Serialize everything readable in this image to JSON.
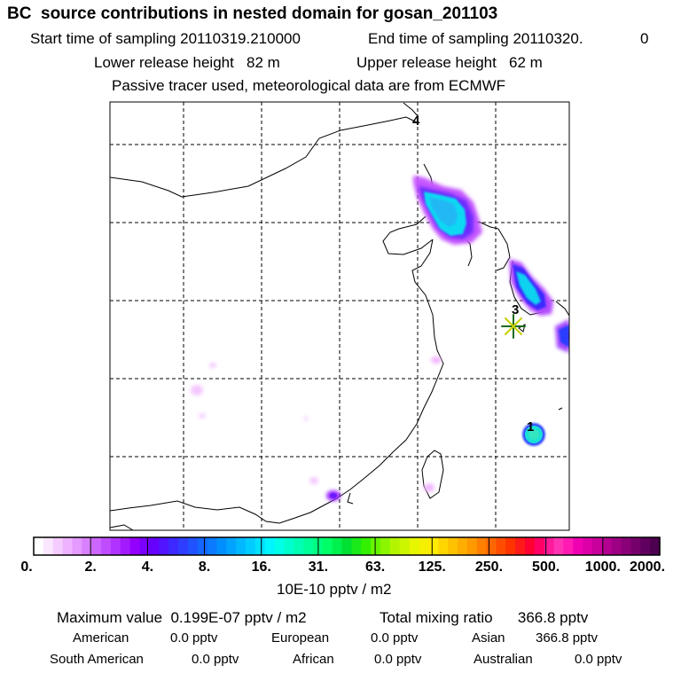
{
  "header": {
    "title": "BC  source contributions in nested domain for gosan_201103",
    "start_label": "Start time of sampling 20110319.210000",
    "end_label": "End time of sampling 20110320.",
    "end_suffix": "0",
    "lower_release": "Lower release height   82 m",
    "upper_release": "Upper release height   62 m",
    "tracer_note": "Passive tracer used, meteorological data are from ECMWF"
  },
  "map": {
    "markers": [
      {
        "label": "4"
      },
      {
        "label": "3"
      },
      {
        "label": "1"
      }
    ],
    "receptor_icon": "asterisk-star-icon"
  },
  "colorbar": {
    "ticks": [
      "0.",
      "2.",
      "4.",
      "8.",
      "16.",
      "31.",
      "63.",
      "125.",
      "250.",
      "500.",
      "1000.",
      "2000."
    ],
    "colors": [
      "#ffffff",
      "#fbe6ff",
      "#f5ccff",
      "#eeb3ff",
      "#e49aff",
      "#d980ff",
      "#cc66ff",
      "#bf4dff",
      "#b033ff",
      "#a31aff",
      "#9400ff",
      "#7a00ff",
      "#6600ff",
      "#5214ff",
      "#3d29ff",
      "#2e3dff",
      "#2052ff",
      "#1466ff",
      "#0a7aff",
      "#008fff",
      "#00a3ff",
      "#00b8ff",
      "#00ccff",
      "#00e0ff",
      "#00f5ff",
      "#00ffe6",
      "#00ffcc",
      "#00ffb3",
      "#00ff99",
      "#00ff80",
      "#00ff66",
      "#00f04d",
      "#00e033",
      "#1aea1a",
      "#33f000",
      "#66f500",
      "#8cf500",
      "#b3f500",
      "#ccf500",
      "#e6f500",
      "#f5f000",
      "#ffeb00",
      "#ffd600",
      "#ffc200",
      "#ffad00",
      "#ff9900",
      "#ff8000",
      "#ff6600",
      "#ff4d00",
      "#ff3300",
      "#ff1a1a",
      "#ff0033",
      "#ff0066",
      "#ff1a99",
      "#ff33b3",
      "#ff1ab3",
      "#f000b3",
      "#dd00a8",
      "#c8009c",
      "#b30090",
      "#9e0084",
      "#8a0078",
      "#75006b",
      "#60005e",
      "#4d004f"
    ],
    "unit": "10E-10 pptv / m2"
  },
  "summary": {
    "maximum": "Maximum value  0.199E-07 pptv / m2",
    "total": "Total mixing ratio      366.8 pptv",
    "rows": [
      [
        {
          "label": "American",
          "value": "0.0 pptv"
        },
        {
          "label": "European",
          "value": "0.0 pptv"
        },
        {
          "label": "Asian",
          "value": "366.8 pptv"
        }
      ],
      [
        {
          "label": "South American",
          "value": "0.0 pptv"
        },
        {
          "label": "African",
          "value": "0.0 pptv"
        },
        {
          "label": "Australian",
          "value": "0.0 pptv"
        }
      ]
    ]
  }
}
